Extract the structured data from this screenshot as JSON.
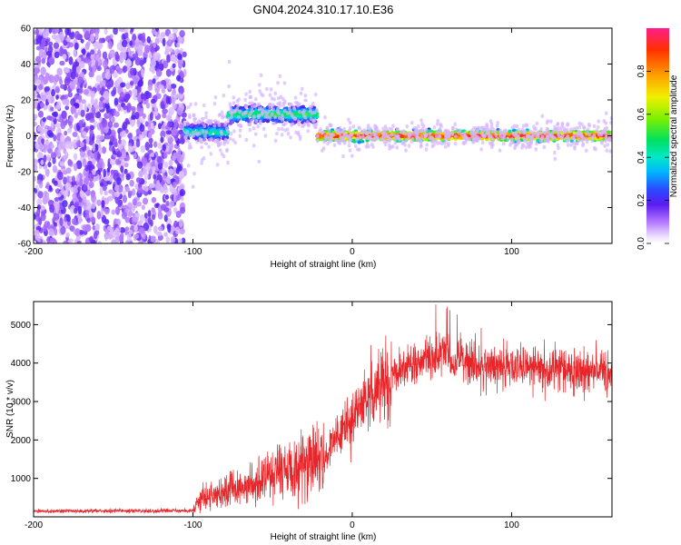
{
  "title": "GN04.2024.310.17.10.E36",
  "chart_data": [
    {
      "type": "heatmap",
      "xlabel": "Height of straight line (km)",
      "ylabel": "Frequency (Hz)",
      "xlim": [
        -200,
        163
      ],
      "ylim": [
        -60,
        60
      ],
      "xticks": [
        -200,
        -100,
        0,
        100
      ],
      "yticks": [
        60,
        40,
        20,
        0,
        -20,
        -40,
        -60
      ],
      "colorbar": {
        "label": "Normalized spectral amplitude",
        "range": [
          0,
          1
        ],
        "ticks": [
          0.0,
          0.2,
          0.4,
          0.6,
          0.8
        ]
      },
      "regions": [
        {
          "x": [
            -200,
            -105
          ],
          "freq_range": [
            -60,
            60
          ],
          "pattern": "broadband noise",
          "amplitude": [
            0.05,
            0.2
          ]
        },
        {
          "x": [
            -105,
            -78
          ],
          "freq_center": 2,
          "freq_spread": 5,
          "amplitude": [
            0.2,
            0.5
          ]
        },
        {
          "x": [
            -78,
            -22
          ],
          "freq_center": 12,
          "freq_spread": 4,
          "amplitude": [
            0.3,
            0.55
          ]
        },
        {
          "x": [
            -22,
            163
          ],
          "freq_center": 0,
          "freq_spread": 2,
          "amplitude": [
            0.7,
            1.0
          ]
        }
      ]
    },
    {
      "type": "line",
      "xlabel": "Height of straight line (km)",
      "ylabel": "SNR (10 * v/v)",
      "xlim": [
        -200,
        163
      ],
      "ylim": [
        0,
        5600
      ],
      "xticks": [
        -200,
        -100,
        0,
        100
      ],
      "yticks": [
        1000,
        2000,
        3000,
        4000,
        5000
      ],
      "series_color": "#e8262a",
      "envelope": [
        {
          "x": -200,
          "y": 150
        },
        {
          "x": -100,
          "y": 160
        },
        {
          "x": -95,
          "y": 450
        },
        {
          "x": -70,
          "y": 750
        },
        {
          "x": -50,
          "y": 1000
        },
        {
          "x": -30,
          "y": 1350
        },
        {
          "x": -18,
          "y": 1500
        },
        {
          "x": -10,
          "y": 2100
        },
        {
          "x": 0,
          "y": 2600
        },
        {
          "x": 10,
          "y": 3100
        },
        {
          "x": 20,
          "y": 3550
        },
        {
          "x": 30,
          "y": 3900
        },
        {
          "x": 45,
          "y": 4050
        },
        {
          "x": 55,
          "y": 4200
        },
        {
          "x": 70,
          "y": 4000
        },
        {
          "x": 100,
          "y": 3900
        },
        {
          "x": 130,
          "y": 3850
        },
        {
          "x": 163,
          "y": 3750
        }
      ]
    }
  ]
}
